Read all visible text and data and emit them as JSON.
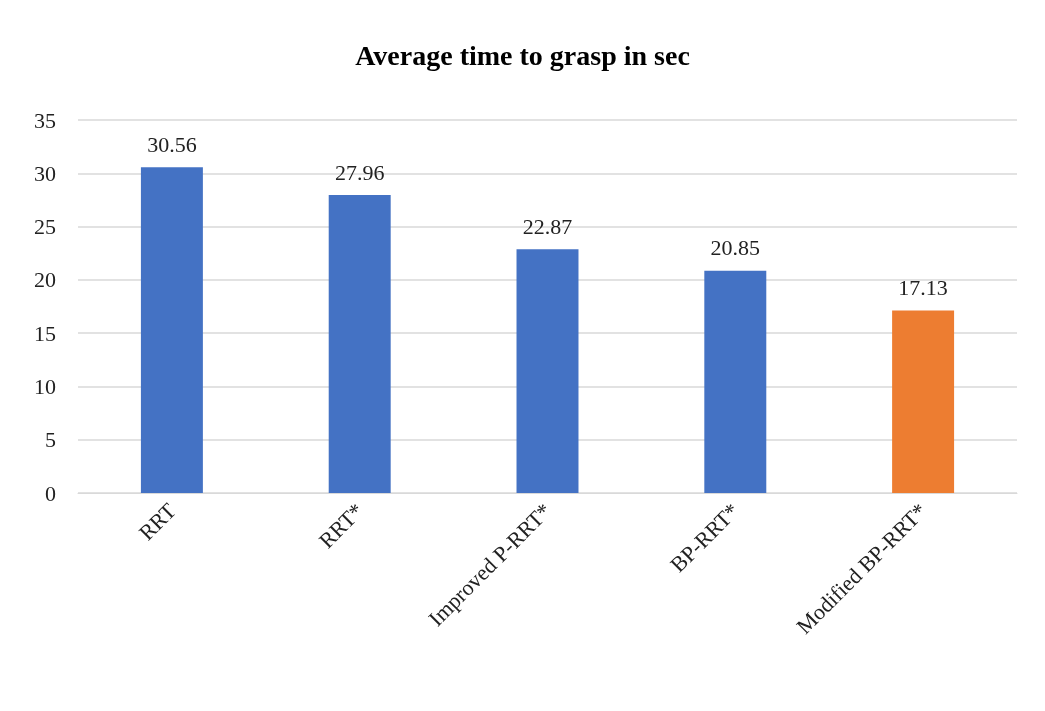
{
  "chart_data": {
    "type": "bar",
    "title": "Average time to grasp in sec",
    "categories": [
      "RRT",
      "RRT*",
      "Improved P-RRT*",
      "BP-RRT*",
      "Modified BP-RRT*"
    ],
    "values": [
      30.56,
      27.96,
      22.87,
      20.85,
      17.13
    ],
    "colors": [
      "#4472c4",
      "#4472c4",
      "#4472c4",
      "#4472c4",
      "#ed7d31"
    ],
    "ylim": [
      0,
      35
    ],
    "yticks": [
      0,
      5,
      10,
      15,
      20,
      25,
      30,
      35
    ],
    "grid": "y",
    "data_labels": true
  }
}
